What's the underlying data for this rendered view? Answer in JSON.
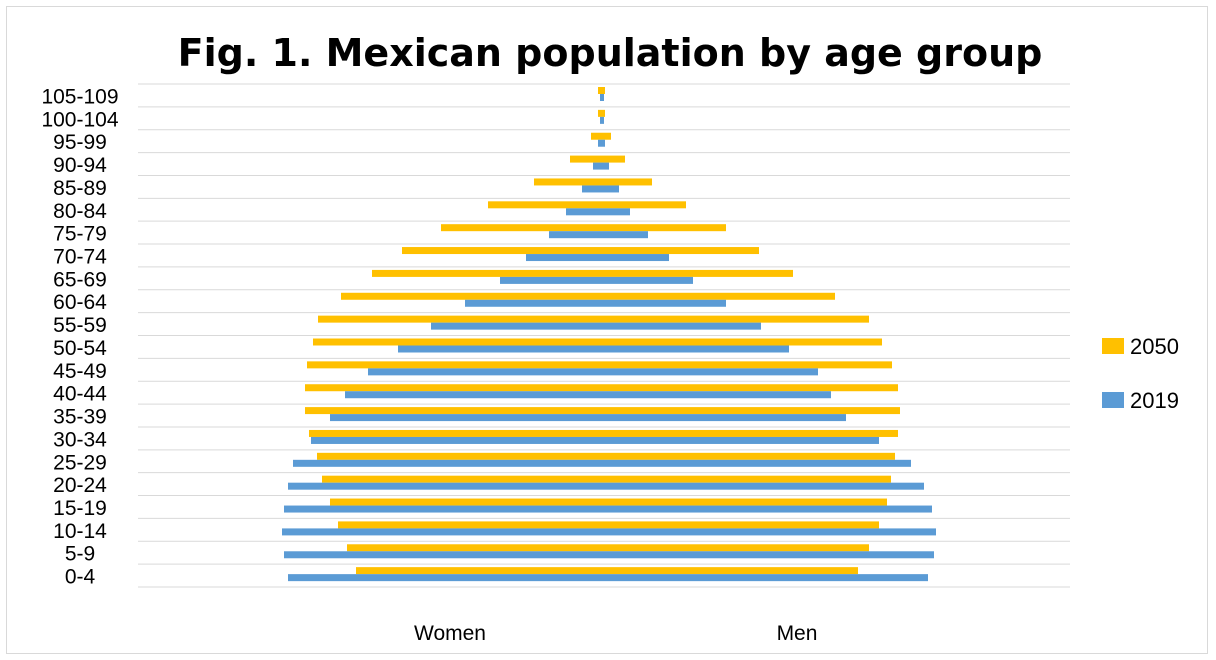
{
  "chart_data": {
    "type": "bar",
    "orientation": "horizontal",
    "subtype": "population-pyramid",
    "title": "Fig. 1. Mexican population by age group",
    "xlabel_left": "Women",
    "xlabel_right": "Men",
    "categories": [
      "0-4",
      "5-9",
      "10-14",
      "15-19",
      "20-24",
      "25-29",
      "30-34",
      "35-39",
      "40-44",
      "45-49",
      "50-54",
      "55-59",
      "60-64",
      "65-69",
      "70-74",
      "75-79",
      "80-84",
      "85-89",
      "90-94",
      "95-99",
      "100-104",
      "105-109"
    ],
    "series": [
      {
        "name": "2050",
        "color": "#FFC000",
        "women": [
          245,
          254,
          263,
          271,
          279,
          284,
          292,
          296,
          296,
          294,
          288,
          283,
          260,
          229,
          199,
          160,
          113,
          67,
          31,
          10,
          3,
          3
        ],
        "men": [
          257,
          268,
          278,
          286,
          290,
          294,
          297,
          299,
          297,
          291,
          281,
          268,
          234,
          192,
          158,
          125,
          85,
          51,
          24,
          10,
          4,
          4
        ]
      },
      {
        "name": "2019",
        "color": "#5B9BD5",
        "women": [
          313,
          317,
          319,
          317,
          313,
          308,
          290,
          271,
          256,
          233,
          203,
          170,
          136,
          101,
          75,
          52,
          35,
          19,
          8,
          3,
          1,
          1
        ],
        "men": [
          327,
          333,
          335,
          331,
          323,
          310,
          278,
          245,
          230,
          217,
          188,
          160,
          125,
          92,
          68,
          47,
          29,
          18,
          8,
          4,
          3,
          3
        ]
      }
    ],
    "legend_position": "right",
    "grid": true
  }
}
